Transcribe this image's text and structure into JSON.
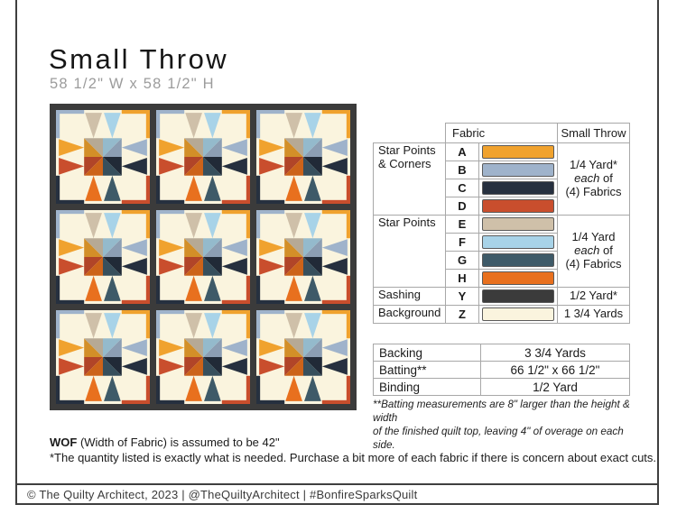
{
  "title": "Small Throw",
  "subtitle": "58 1/2\" W x 58 1/2\" H",
  "quilt": {
    "sashing_color": "#3B3B3B",
    "background_color": "#FAF4DE",
    "grid_rows": 3,
    "grid_cols": 3,
    "fabrics": {
      "A": "#F0A22E",
      "B": "#9FB3CB",
      "C": "#26303F",
      "D": "#C94E2D",
      "E": "#CFC0A9",
      "F": "#A8D3E8",
      "G": "#3E5A68",
      "H": "#E8701E",
      "Y": "#3B3B3B",
      "Z": "#FAF4DE"
    }
  },
  "fabric_table": {
    "header_fabric": "Fabric",
    "header_size": "Small Throw",
    "groups": [
      {
        "label": "Star Points & Corners",
        "letters": [
          "A",
          "B",
          "C",
          "D"
        ],
        "colors": [
          "#F0A22E",
          "#9FB3CB",
          "#26303F",
          "#C94E2D"
        ],
        "yardage_lines": [
          "1/4 Yard*",
          "each of",
          "(4) Fabrics"
        ],
        "yardage_italic_word": "each"
      },
      {
        "label": "Star Points",
        "letters": [
          "E",
          "F",
          "G",
          "H"
        ],
        "colors": [
          "#CFC0A9",
          "#A8D3E8",
          "#3E5A68",
          "#E8701E"
        ],
        "yardage_lines": [
          "1/4 Yard",
          "each of",
          "(4) Fabrics"
        ],
        "yardage_italic_word": "each"
      },
      {
        "label": "Sashing",
        "letters": [
          "Y"
        ],
        "colors": [
          "#3B3B3B"
        ],
        "yardage_lines": [
          "1/2 Yard*"
        ]
      },
      {
        "label": "Background",
        "letters": [
          "Z"
        ],
        "colors": [
          "#FAF4DE"
        ],
        "yardage_lines": [
          "1 3/4 Yards"
        ]
      }
    ]
  },
  "info_table": {
    "rows": [
      {
        "label": "Backing",
        "value": "3 3/4 Yards"
      },
      {
        "label": "Batting**",
        "value": "66 1/2\" x 66 1/2\""
      },
      {
        "label": "Binding",
        "value": "1/2 Yard"
      }
    ],
    "footnote_lines": [
      "**Batting measurements are 8\" larger than the height & width",
      "of the finished quilt top, leaving 4\" of overage on each side."
    ]
  },
  "notes": {
    "wof_bold": "WOF",
    "wof_rest": " (Width of Fabric) is assumed to be 42\"",
    "quantity": "*The quantity listed is exactly what is needed. Purchase a bit more of each fabric if there is concern about exact cuts."
  },
  "footer": {
    "text": "© The Quilty Architect, 2023  |  @TheQuiltyArchitect  |  #BonfireSparksQuilt"
  }
}
